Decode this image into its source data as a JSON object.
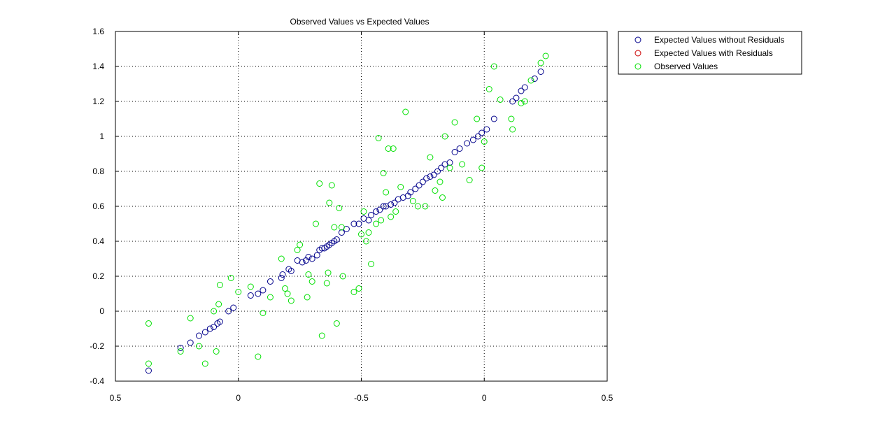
{
  "chart_data": {
    "type": "scatter",
    "title": "Observed Values vs Expected Values",
    "xlabel": "",
    "ylabel": "",
    "x_tick_labels": [
      "0.5",
      "0",
      "-0.5",
      "0",
      "0.5"
    ],
    "y_tick_labels": [
      "1.6",
      "1.4",
      "1.2",
      "1",
      "0.8",
      "0.6",
      "0.4",
      "0.2",
      "0",
      "-0.2",
      "-0.4"
    ],
    "xlim_index": [
      0,
      4
    ],
    "ylim": [
      -0.4,
      1.6
    ],
    "grid": true,
    "legend_location": "top-right-outside",
    "x_note": "x values are expressed as position along the printed x-axis tick sequence, 0 = first tick (0.5) ... 4 = last tick (0.5)",
    "series": [
      {
        "name": "Expected Values without Residuals",
        "color": "#00008b",
        "points": [
          [
            0.27,
            -0.34
          ],
          [
            0.53,
            -0.21
          ],
          [
            0.61,
            -0.18
          ],
          [
            0.68,
            -0.14
          ],
          [
            0.73,
            -0.12
          ],
          [
            0.77,
            -0.1
          ],
          [
            0.8,
            -0.09
          ],
          [
            0.83,
            -0.07
          ],
          [
            0.85,
            -0.06
          ],
          [
            0.92,
            0.0
          ],
          [
            0.96,
            0.02
          ],
          [
            1.1,
            0.09
          ],
          [
            1.16,
            0.1
          ],
          [
            1.2,
            0.12
          ],
          [
            1.26,
            0.17
          ],
          [
            1.35,
            0.19
          ],
          [
            1.36,
            0.21
          ],
          [
            1.41,
            0.24
          ],
          [
            1.43,
            0.23
          ],
          [
            1.48,
            0.29
          ],
          [
            1.52,
            0.28
          ],
          [
            1.55,
            0.29
          ],
          [
            1.57,
            0.31
          ],
          [
            1.6,
            0.3
          ],
          [
            1.64,
            0.32
          ],
          [
            1.66,
            0.35
          ],
          [
            1.68,
            0.36
          ],
          [
            1.7,
            0.36
          ],
          [
            1.72,
            0.37
          ],
          [
            1.74,
            0.38
          ],
          [
            1.76,
            0.39
          ],
          [
            1.78,
            0.4
          ],
          [
            1.8,
            0.41
          ],
          [
            1.84,
            0.45
          ],
          [
            1.88,
            0.47
          ],
          [
            1.94,
            0.5
          ],
          [
            1.98,
            0.5
          ],
          [
            2.02,
            0.53
          ],
          [
            2.06,
            0.52
          ],
          [
            2.08,
            0.55
          ],
          [
            2.12,
            0.57
          ],
          [
            2.15,
            0.58
          ],
          [
            2.18,
            0.6
          ],
          [
            2.2,
            0.6
          ],
          [
            2.24,
            0.61
          ],
          [
            2.27,
            0.62
          ],
          [
            2.3,
            0.64
          ],
          [
            2.34,
            0.65
          ],
          [
            2.38,
            0.66
          ],
          [
            2.4,
            0.68
          ],
          [
            2.44,
            0.7
          ],
          [
            2.47,
            0.72
          ],
          [
            2.5,
            0.74
          ],
          [
            2.53,
            0.76
          ],
          [
            2.56,
            0.77
          ],
          [
            2.59,
            0.78
          ],
          [
            2.62,
            0.8
          ],
          [
            2.65,
            0.82
          ],
          [
            2.68,
            0.84
          ],
          [
            2.72,
            0.85
          ],
          [
            2.76,
            0.91
          ],
          [
            2.8,
            0.93
          ],
          [
            2.86,
            0.96
          ],
          [
            2.91,
            0.98
          ],
          [
            2.95,
            1.0
          ],
          [
            2.98,
            1.02
          ],
          [
            3.02,
            1.04
          ],
          [
            3.08,
            1.1
          ],
          [
            3.23,
            1.2
          ],
          [
            3.26,
            1.22
          ],
          [
            3.3,
            1.26
          ],
          [
            3.33,
            1.28
          ],
          [
            3.41,
            1.33
          ],
          [
            3.46,
            1.37
          ]
        ]
      },
      {
        "name": "Expected Values with Residuals",
        "color": "#cc0000",
        "points": []
      },
      {
        "name": "Observed Values",
        "color": "#00e000",
        "points": [
          [
            0.27,
            -0.07
          ],
          [
            0.27,
            -0.3
          ],
          [
            0.53,
            -0.23
          ],
          [
            0.61,
            -0.04
          ],
          [
            0.68,
            -0.2
          ],
          [
            0.73,
            -0.3
          ],
          [
            0.8,
            0.0
          ],
          [
            0.82,
            -0.23
          ],
          [
            0.84,
            0.04
          ],
          [
            0.85,
            0.15
          ],
          [
            0.94,
            0.19
          ],
          [
            1.0,
            0.11
          ],
          [
            1.1,
            0.14
          ],
          [
            1.16,
            -0.26
          ],
          [
            1.2,
            -0.01
          ],
          [
            1.26,
            0.08
          ],
          [
            1.35,
            0.3
          ],
          [
            1.38,
            0.13
          ],
          [
            1.4,
            0.1
          ],
          [
            1.43,
            0.06
          ],
          [
            1.48,
            0.35
          ],
          [
            1.5,
            0.38
          ],
          [
            1.56,
            0.08
          ],
          [
            1.57,
            0.21
          ],
          [
            1.6,
            0.17
          ],
          [
            1.63,
            0.5
          ],
          [
            1.66,
            0.73
          ],
          [
            1.68,
            -0.14
          ],
          [
            1.72,
            0.16
          ],
          [
            1.73,
            0.22
          ],
          [
            1.74,
            0.62
          ],
          [
            1.76,
            0.72
          ],
          [
            1.78,
            0.48
          ],
          [
            1.8,
            -0.07
          ],
          [
            1.82,
            0.59
          ],
          [
            1.84,
            0.48
          ],
          [
            1.85,
            0.2
          ],
          [
            1.94,
            0.11
          ],
          [
            1.98,
            0.13
          ],
          [
            2.0,
            0.44
          ],
          [
            2.02,
            0.57
          ],
          [
            2.04,
            0.4
          ],
          [
            2.06,
            0.45
          ],
          [
            2.08,
            0.27
          ],
          [
            2.12,
            0.5
          ],
          [
            2.14,
            0.99
          ],
          [
            2.16,
            0.52
          ],
          [
            2.18,
            0.79
          ],
          [
            2.2,
            0.68
          ],
          [
            2.22,
            0.93
          ],
          [
            2.24,
            0.54
          ],
          [
            2.26,
            0.93
          ],
          [
            2.28,
            0.57
          ],
          [
            2.32,
            0.71
          ],
          [
            2.36,
            1.14
          ],
          [
            2.42,
            0.63
          ],
          [
            2.46,
            0.6
          ],
          [
            2.52,
            0.6
          ],
          [
            2.56,
            0.88
          ],
          [
            2.6,
            0.69
          ],
          [
            2.64,
            0.74
          ],
          [
            2.66,
            0.65
          ],
          [
            2.68,
            1.0
          ],
          [
            2.72,
            0.82
          ],
          [
            2.76,
            1.08
          ],
          [
            2.82,
            0.84
          ],
          [
            2.88,
            0.75
          ],
          [
            2.94,
            1.1
          ],
          [
            2.98,
            0.82
          ],
          [
            3.0,
            0.97
          ],
          [
            3.04,
            1.27
          ],
          [
            3.08,
            1.4
          ],
          [
            3.13,
            1.21
          ],
          [
            3.22,
            1.1
          ],
          [
            3.23,
            1.04
          ],
          [
            3.3,
            1.19
          ],
          [
            3.33,
            1.2
          ],
          [
            3.38,
            1.32
          ],
          [
            3.46,
            1.42
          ],
          [
            3.5,
            1.46
          ]
        ]
      }
    ]
  },
  "colors": {
    "axes_background": "#ffffff",
    "grid": "#000000",
    "axis_line": "#000000"
  }
}
